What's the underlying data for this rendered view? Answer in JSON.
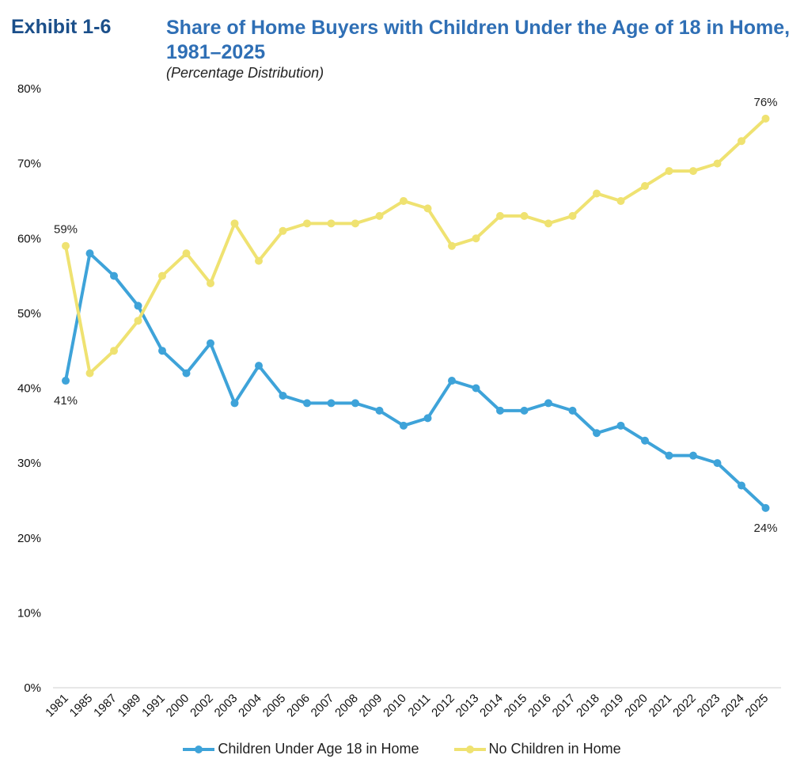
{
  "header": {
    "exhibit": "Exhibit 1-6",
    "title": "Share of Home Buyers with Children Under the Age of 18 in Home, 1981–2025",
    "subtitle": "(Percentage Distribution)"
  },
  "chart_data": {
    "type": "line",
    "x": [
      "1981",
      "1985",
      "1987",
      "1989",
      "1991",
      "2000",
      "2002",
      "2003",
      "2004",
      "2005",
      "2006",
      "2007",
      "2008",
      "2009",
      "2010",
      "2011",
      "2012",
      "2013",
      "2014",
      "2015",
      "2016",
      "2017",
      "2018",
      "2019",
      "2020",
      "2021",
      "2022",
      "2023",
      "2024",
      "2025"
    ],
    "series": [
      {
        "name": "Children Under Age 18 in Home",
        "color": "#3ea3d9",
        "values": [
          41,
          58,
          55,
          51,
          45,
          42,
          46,
          38,
          43,
          39,
          38,
          38,
          38,
          37,
          35,
          36,
          41,
          40,
          37,
          37,
          38,
          37,
          34,
          35,
          33,
          31,
          31,
          30,
          27,
          24
        ]
      },
      {
        "name": "No Children in Home",
        "color": "#efe271",
        "values": [
          59,
          42,
          45,
          49,
          55,
          58,
          54,
          62,
          57,
          61,
          62,
          62,
          62,
          63,
          65,
          64,
          59,
          60,
          63,
          63,
          62,
          63,
          66,
          65,
          67,
          69,
          69,
          70,
          73,
          76
        ]
      }
    ],
    "ylim": [
      0,
      80
    ],
    "yticks": [
      "0%",
      "10%",
      "20%",
      "30%",
      "40%",
      "50%",
      "60%",
      "70%",
      "80%"
    ],
    "grid": false,
    "legend_position": "bottom",
    "annotations": [
      {
        "series": 0,
        "index": 0,
        "text": "41%",
        "placement": "below"
      },
      {
        "series": 1,
        "index": 0,
        "text": "59%",
        "placement": "above"
      },
      {
        "series": 0,
        "index": 29,
        "text": "24%",
        "placement": "below"
      },
      {
        "series": 1,
        "index": 29,
        "text": "76%",
        "placement": "above"
      }
    ]
  }
}
